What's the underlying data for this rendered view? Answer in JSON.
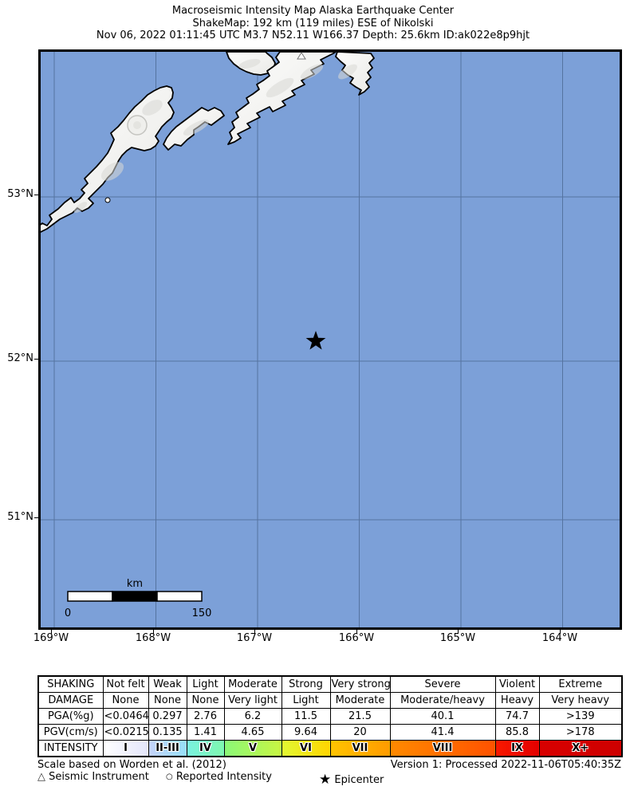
{
  "header": {
    "line1": "Macroseismic Intensity Map Alaska Earthquake Center",
    "line2": "ShakeMap: 192 km (119 miles) ESE of Nikolski",
    "line3": "Nov 06, 2022 01:11:45 UTC M3.7 N52.11 W166.37 Depth: 25.6km ID:ak022e8p9hjt"
  },
  "map": {
    "ocean_color": "#7CA0D8",
    "land_color": "#F6F6F4",
    "grid_color": "#49648E",
    "lon_labels": [
      "169°W",
      "168°W",
      "167°W",
      "166°W",
      "165°W",
      "164°W"
    ],
    "lat_labels": [
      "53°N",
      "52°N",
      "51°N"
    ],
    "epicenter": {
      "lat": "N52.11",
      "lon": "W166.37"
    },
    "scalebar": {
      "unit_label": "km",
      "min_label": "0",
      "max_label": "150"
    }
  },
  "legend_table": {
    "rows": [
      {
        "label": "SHAKING",
        "cells": [
          "Not felt",
          "Weak",
          "Light",
          "Moderate",
          "Strong",
          "Very strong",
          "Severe",
          "Violent",
          "Extreme"
        ]
      },
      {
        "label": "DAMAGE",
        "cells": [
          "None",
          "None",
          "None",
          "Very light",
          "Light",
          "Moderate",
          "Moderate/heavy",
          "Heavy",
          "Very heavy"
        ]
      },
      {
        "label": "PGA(%g)",
        "cells": [
          "<0.0464",
          "0.297",
          "2.76",
          "6.2",
          "11.5",
          "21.5",
          "40.1",
          "74.7",
          ">139"
        ]
      },
      {
        "label": "PGV(cm/s)",
        "cells": [
          "<0.0215",
          "0.135",
          "1.41",
          "4.65",
          "9.64",
          "20",
          "41.4",
          "85.8",
          ">178"
        ]
      },
      {
        "label": "INTENSITY",
        "cells": [
          "I",
          "II-III",
          "IV",
          "V",
          "VI",
          "VII",
          "VIII",
          "IX",
          "X+"
        ],
        "intensity": true
      }
    ],
    "intensity_colors": [
      [
        "#FFFFFF",
        "#E4E6FB"
      ],
      [
        "#C5D3FA",
        "#96DFF8"
      ],
      [
        "#79F2E0",
        "#7EF8AF"
      ],
      [
        "#8AF878",
        "#C8F642"
      ],
      [
        "#E2F933",
        "#FFD500"
      ],
      [
        "#FFC400",
        "#FF9B00"
      ],
      [
        "#FF8A00",
        "#FF5200"
      ],
      [
        "#F91900",
        "#E30000"
      ],
      [
        "#D80000",
        "#CE0000"
      ]
    ]
  },
  "footer": {
    "scale_note": "Scale based on Worden et al. (2012)",
    "version_note": "Version 1: Processed 2022-11-06T05:40:35Z",
    "legend": {
      "seismic_symbol": "△",
      "seismic_label": "Seismic Instrument",
      "reported_symbol": "○",
      "reported_label": "Reported Intensity",
      "epicenter_symbol": "★",
      "epicenter_label": "Epicenter"
    }
  }
}
